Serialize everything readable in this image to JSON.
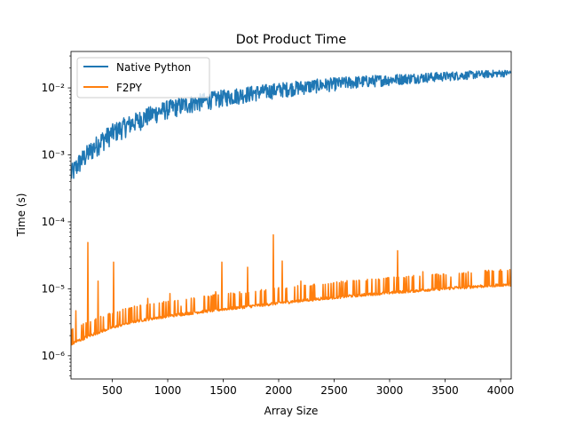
{
  "chart_data": {
    "type": "line",
    "title": "Dot Product Time",
    "xlabel": "Array Size",
    "ylabel": "Time (s)",
    "xlim": [
      128,
      4096
    ],
    "ylim": [
      4.5e-07,
      0.035
    ],
    "yscale": "log",
    "grid": false,
    "legend_position": "top-left",
    "x_ticks": [
      500,
      1000,
      1500,
      2000,
      2500,
      3000,
      3500,
      4000
    ],
    "x_tick_labels": [
      "500",
      "1000",
      "1500",
      "2000",
      "2500",
      "3000",
      "3500",
      "4000"
    ],
    "y_ticks": [
      1e-06,
      1e-05,
      0.0001,
      0.001,
      0.01
    ],
    "y_tick_labels": [
      "10⁻⁶",
      "10⁻⁵",
      "10⁻⁴",
      "10⁻³",
      "10⁻²"
    ],
    "series": [
      {
        "name": "Native Python",
        "color": "#1f77b4",
        "x": [
          128,
          200,
          300,
          400,
          500,
          600,
          700,
          800,
          900,
          1000,
          1200,
          1400,
          1600,
          1800,
          2000,
          2200,
          2400,
          2600,
          2800,
          3000,
          3200,
          3400,
          3600,
          3800,
          4000,
          4096
        ],
        "y": [
          0.0004,
          0.0006,
          0.0009,
          0.0013,
          0.0017,
          0.0021,
          0.0025,
          0.003,
          0.0035,
          0.004,
          0.0048,
          0.0056,
          0.0064,
          0.0072,
          0.008,
          0.0088,
          0.0096,
          0.0104,
          0.0111,
          0.0118,
          0.0125,
          0.0132,
          0.0139,
          0.0146,
          0.0153,
          0.0156
        ]
      },
      {
        "name": "F2PY",
        "color": "#ff7f0e",
        "x": [
          128,
          200,
          300,
          400,
          500,
          600,
          700,
          800,
          900,
          1000,
          1200,
          1400,
          1600,
          1800,
          2000,
          2200,
          2400,
          2600,
          2800,
          3000,
          3200,
          3400,
          3600,
          3800,
          4000,
          4096
        ],
        "y": [
          1.4e-06,
          1.6e-06,
          1.9e-06,
          2.2e-06,
          2.5e-06,
          2.8e-06,
          3.1e-06,
          3.3e-06,
          3.5e-06,
          3.7e-06,
          4.1e-06,
          4.5e-06,
          4.9e-06,
          5.3e-06,
          5.8e-06,
          6.3e-06,
          6.8e-06,
          7.3e-06,
          7.8e-06,
          8.3e-06,
          8.8e-06,
          9.3e-06,
          9.8e-06,
          1.03e-05,
          1.08e-05,
          1.1e-05
        ],
        "spikes": [
          {
            "x": 170,
            "y": 4.7e-06
          },
          {
            "x": 279,
            "y": 4.9e-05
          },
          {
            "x": 370,
            "y": 1.3e-05
          },
          {
            "x": 510,
            "y": 2.5e-05
          },
          {
            "x": 820,
            "y": 7.2e-06
          },
          {
            "x": 1020,
            "y": 8.5e-06
          },
          {
            "x": 1120,
            "y": 5.5e-06
          },
          {
            "x": 1230,
            "y": 5.2e-06
          },
          {
            "x": 1330,
            "y": 7.7e-06
          },
          {
            "x": 1430,
            "y": 9e-06
          },
          {
            "x": 1488,
            "y": 2.5e-05
          },
          {
            "x": 1720,
            "y": 2.1e-05
          },
          {
            "x": 1953,
            "y": 6.4e-05
          },
          {
            "x": 2030,
            "y": 2.6e-05
          },
          {
            "x": 2200,
            "y": 1.3e-05
          },
          {
            "x": 2600,
            "y": 1.2e-05
          },
          {
            "x": 2900,
            "y": 1.4e-05
          },
          {
            "x": 3070,
            "y": 3.7e-05
          },
          {
            "x": 3300,
            "y": 1.8e-05
          },
          {
            "x": 3550,
            "y": 1.5e-05
          },
          {
            "x": 3880,
            "y": 1.8e-05
          }
        ]
      }
    ]
  }
}
